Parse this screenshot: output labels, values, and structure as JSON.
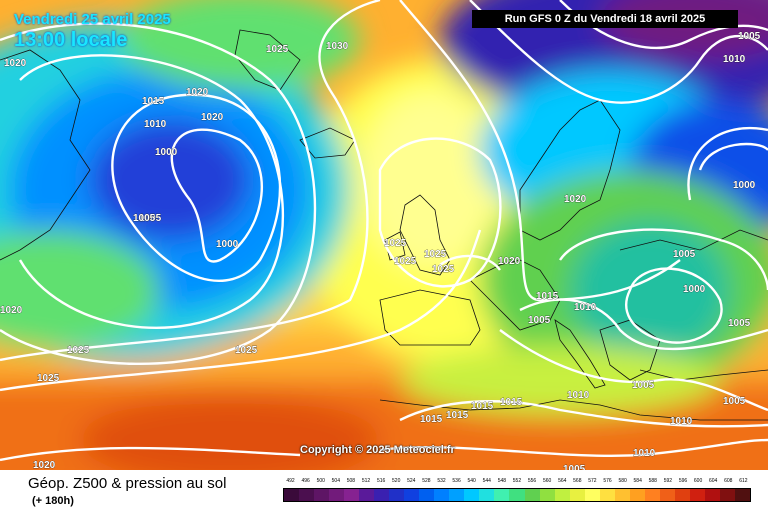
{
  "header": {
    "date": "Vendredi 25 avril 2025",
    "time": "13:00 locale",
    "run": "Run GFS 0 Z du Vendredi 18 avril 2025"
  },
  "copyright": "Copyright © 2025 Meteociel.fr",
  "footer": {
    "title": "Géop. Z500 & pression au sol",
    "subtitle": "(+ 180h)"
  },
  "legend_values": [
    "492",
    "496",
    "500",
    "504",
    "508",
    "512",
    "516",
    "520",
    "524",
    "528",
    "532",
    "536",
    "540",
    "544",
    "548",
    "552",
    "556",
    "560",
    "564",
    "568",
    "572",
    "576",
    "580",
    "584",
    "588",
    "592",
    "596",
    "600",
    "604",
    "608",
    "612"
  ],
  "legend_colors": [
    "#3a0a3a",
    "#4b0f4f",
    "#5e1565",
    "#721b7b",
    "#862291",
    "#5a1a9a",
    "#3a20b0",
    "#2030c8",
    "#1040e0",
    "#0060f0",
    "#0080ff",
    "#00a0ff",
    "#00c8ff",
    "#20e0e0",
    "#40f0b0",
    "#40e080",
    "#60d050",
    "#90e040",
    "#c0f040",
    "#e8f040",
    "#ffff60",
    "#ffe040",
    "#ffc030",
    "#ffa020",
    "#ff8020",
    "#f06018",
    "#e04010",
    "#d02010",
    "#b01010",
    "#801010",
    "#501010"
  ],
  "pressure_labels": [
    {
      "v": "1020"
    },
    {
      "v": "1025"
    },
    {
      "v": "1030"
    },
    {
      "v": "1015"
    },
    {
      "v": "1020"
    },
    {
      "v": "1010"
    },
    {
      "v": "1020"
    },
    {
      "v": "1000"
    },
    {
      "v": "1005"
    },
    {
      "v": "1000"
    },
    {
      "v": "1025"
    },
    {
      "v": "1025"
    },
    {
      "v": "1025"
    },
    {
      "v": "1025"
    },
    {
      "v": "1020"
    },
    {
      "v": "1020"
    },
    {
      "v": "1015"
    },
    {
      "v": "1010"
    },
    {
      "v": "1005"
    },
    {
      "v": "1005"
    },
    {
      "v": "1000"
    },
    {
      "v": "1005"
    },
    {
      "v": "1000"
    },
    {
      "v": "1005"
    },
    {
      "v": "1010"
    },
    {
      "v": "1005"
    },
    {
      "v": "1020"
    },
    {
      "v": "1025"
    },
    {
      "v": "1025"
    },
    {
      "v": "1025"
    },
    {
      "v": "1015"
    },
    {
      "v": "1015"
    },
    {
      "v": "1015"
    },
    {
      "v": "1015"
    },
    {
      "v": "1010"
    },
    {
      "v": "1005"
    },
    {
      "v": "1010"
    },
    {
      "v": "1005"
    },
    {
      "v": "1010"
    },
    {
      "v": "1005"
    },
    {
      "v": "1020"
    },
    {
      "v": "1005"
    },
    {
      "v": "1010"
    }
  ]
}
